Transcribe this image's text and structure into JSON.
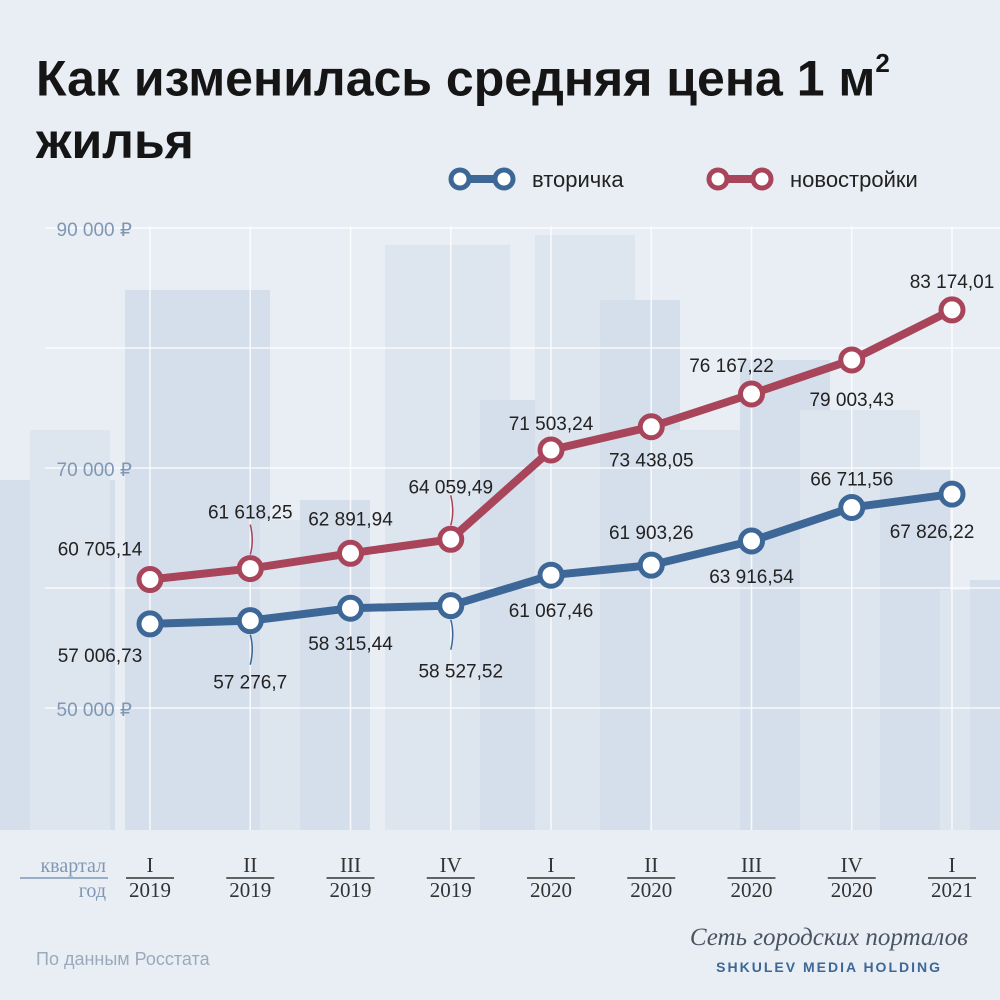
{
  "title": "Как изменилась средняя цена 1 м",
  "title_sup": "2",
  "title_line2": "жилья",
  "source_note": "По данным Росстата",
  "brand": {
    "line1": "Сеть городских порталов",
    "line2": "SHKULEV MEDIA HOLDING"
  },
  "colors": {
    "secondary": "#3d6796",
    "new": "#a8455a",
    "axis_text": "#7f97b4",
    "label_text": "#222222",
    "background": "#e9eef5"
  },
  "chart_data": {
    "type": "line",
    "title": "Как изменилась средняя цена 1 м² жилья",
    "xlabel": "",
    "ylabel": "",
    "x_axis_titles": {
      "quarter": "квартал",
      "year": "год"
    },
    "categories": [
      {
        "quarter": "I",
        "year": "2019"
      },
      {
        "quarter": "II",
        "year": "2019"
      },
      {
        "quarter": "III",
        "year": "2019"
      },
      {
        "quarter": "IV",
        "year": "2019"
      },
      {
        "quarter": "I",
        "year": "2020"
      },
      {
        "quarter": "II",
        "year": "2020"
      },
      {
        "quarter": "III",
        "year": "2020"
      },
      {
        "quarter": "IV",
        "year": "2020"
      },
      {
        "quarter": "I",
        "year": "2021"
      }
    ],
    "y_ticks": [
      {
        "value": 50000,
        "label": "50 000 ₽"
      },
      {
        "value": 70000,
        "label": "70 000 ₽"
      },
      {
        "value": 90000,
        "label": "90 000 ₽"
      }
    ],
    "ylim": [
      45000,
      90000
    ],
    "grid": true,
    "legend_position": "top-right",
    "series": [
      {
        "name": "вторичка",
        "color": "#3d6796",
        "values": [
          57006.73,
          57276.7,
          58315.44,
          58527.52,
          61067.46,
          61903.26,
          63916.54,
          66711.56,
          67826.22
        ],
        "labels": [
          "57 006,73",
          "57 276,7",
          "58 315,44",
          "58 527,52",
          "61 067,46",
          "61 903,26",
          "63 916,54",
          "66 711,56",
          "67 826,22"
        ]
      },
      {
        "name": "новостройки",
        "color": "#a8455a",
        "values": [
          60705.14,
          61618.25,
          62891.94,
          64059.49,
          71503.24,
          73438.05,
          76167.22,
          79003.43,
          83174.01
        ],
        "labels": [
          "60 705,14",
          "61 618,25",
          "62 891,94",
          "64 059,49",
          "71 503,24",
          "73 438,05",
          "76 167,22",
          "79 003,43",
          "83 174,01"
        ]
      }
    ]
  }
}
